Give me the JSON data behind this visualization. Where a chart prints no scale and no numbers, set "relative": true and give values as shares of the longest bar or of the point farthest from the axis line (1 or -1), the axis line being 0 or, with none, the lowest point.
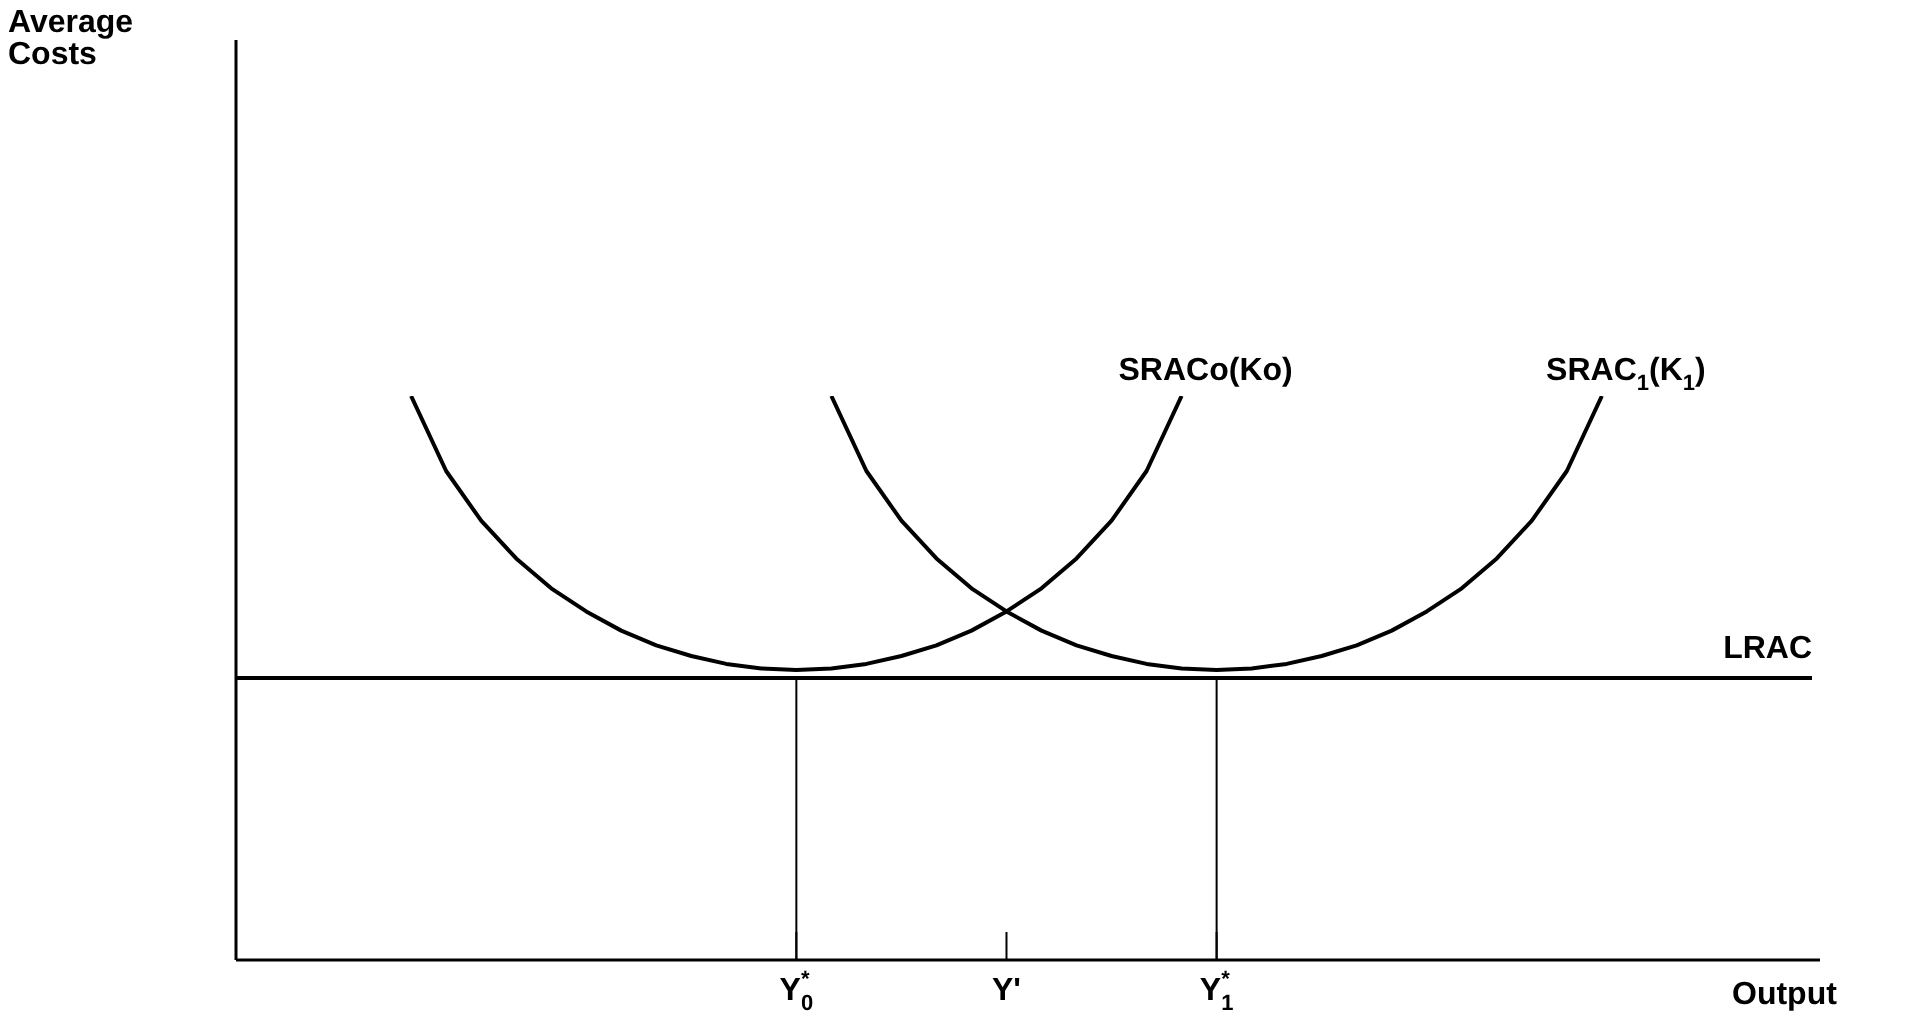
{
  "chart_data": {
    "type": "line",
    "relative": true,
    "annotations": [
      "Average Costs"
    ],
    "xlabel": "Output",
    "categories": [
      null,
      null,
      null,
      null,
      null,
      null,
      null,
      null,
      null,
      null,
      null,
      null,
      null,
      null,
      null,
      null,
      "Y$_{0}$$^{*}$",
      null,
      null,
      null,
      null,
      null,
      "Y'",
      null,
      null,
      null,
      null,
      null,
      "Y$_{1}$$^{*}$",
      null,
      null,
      null,
      null,
      null,
      null,
      null,
      null,
      null,
      null,
      null,
      null,
      null,
      null,
      null,
      null,
      null
    ],
    "series": [
      {
        "name": "LRAC",
        "color": "#000000",
        "values": [
          0.5,
          0.5,
          0.5,
          0.5,
          0.5,
          0.5,
          0.5,
          0.5,
          0.5,
          0.5,
          0.5,
          0.5,
          0.5,
          0.5,
          0.5,
          0.5,
          0.5,
          0.5,
          0.5,
          0.5,
          0.5,
          0.5,
          0.5,
          0.5,
          0.5,
          0.5,
          0.5,
          0.5,
          0.5,
          0.5,
          0.5,
          0.5,
          0.5,
          0.5,
          0.5,
          0.5,
          0.5,
          0.5,
          0.5,
          0.5,
          0.5,
          0.5,
          0.5,
          0.5,
          0.5,
          0.5
        ]
      },
      {
        "name": "SRACo(Ko)",
        "color": "#000000",
        "values": [
          null,
          null,
          null,
          null,
          null,
          1,
          0.867,
          0.779,
          0.712,
          0.659,
          0.618,
          0.584,
          0.558,
          0.539,
          0.525,
          0.517,
          0.514,
          0.517,
          0.525,
          0.539,
          0.558,
          0.584,
          0.618,
          0.659,
          0.712,
          0.779,
          0.867,
          1,
          null,
          null,
          null,
          null,
          null,
          null,
          null,
          null,
          null,
          null,
          null,
          null,
          null,
          null,
          null,
          null,
          null,
          null
        ]
      },
      {
        "name": "SRAC$_{1}$(K$_{1}$)",
        "color": "#000000",
        "values": [
          null,
          null,
          null,
          null,
          null,
          null,
          null,
          null,
          null,
          null,
          null,
          null,
          null,
          null,
          null,
          null,
          null,
          1,
          0.867,
          0.779,
          0.712,
          0.659,
          0.618,
          0.584,
          0.558,
          0.539,
          0.525,
          0.517,
          0.514,
          0.517,
          0.525,
          0.539,
          0.558,
          0.584,
          0.618,
          0.659,
          0.712,
          0.779,
          0.867,
          1,
          null,
          null,
          null,
          null,
          null,
          null
        ]
      }
    ],
    "ref_lines": [
      {
        "axis": "x",
        "value": "Y$_{0}$$^{*}$"
      },
      {
        "axis": "x",
        "value": "Y$_{1}$$^{*}$"
      }
    ],
    "legend": false,
    "marker": "none",
    "line_style": "solid"
  }
}
